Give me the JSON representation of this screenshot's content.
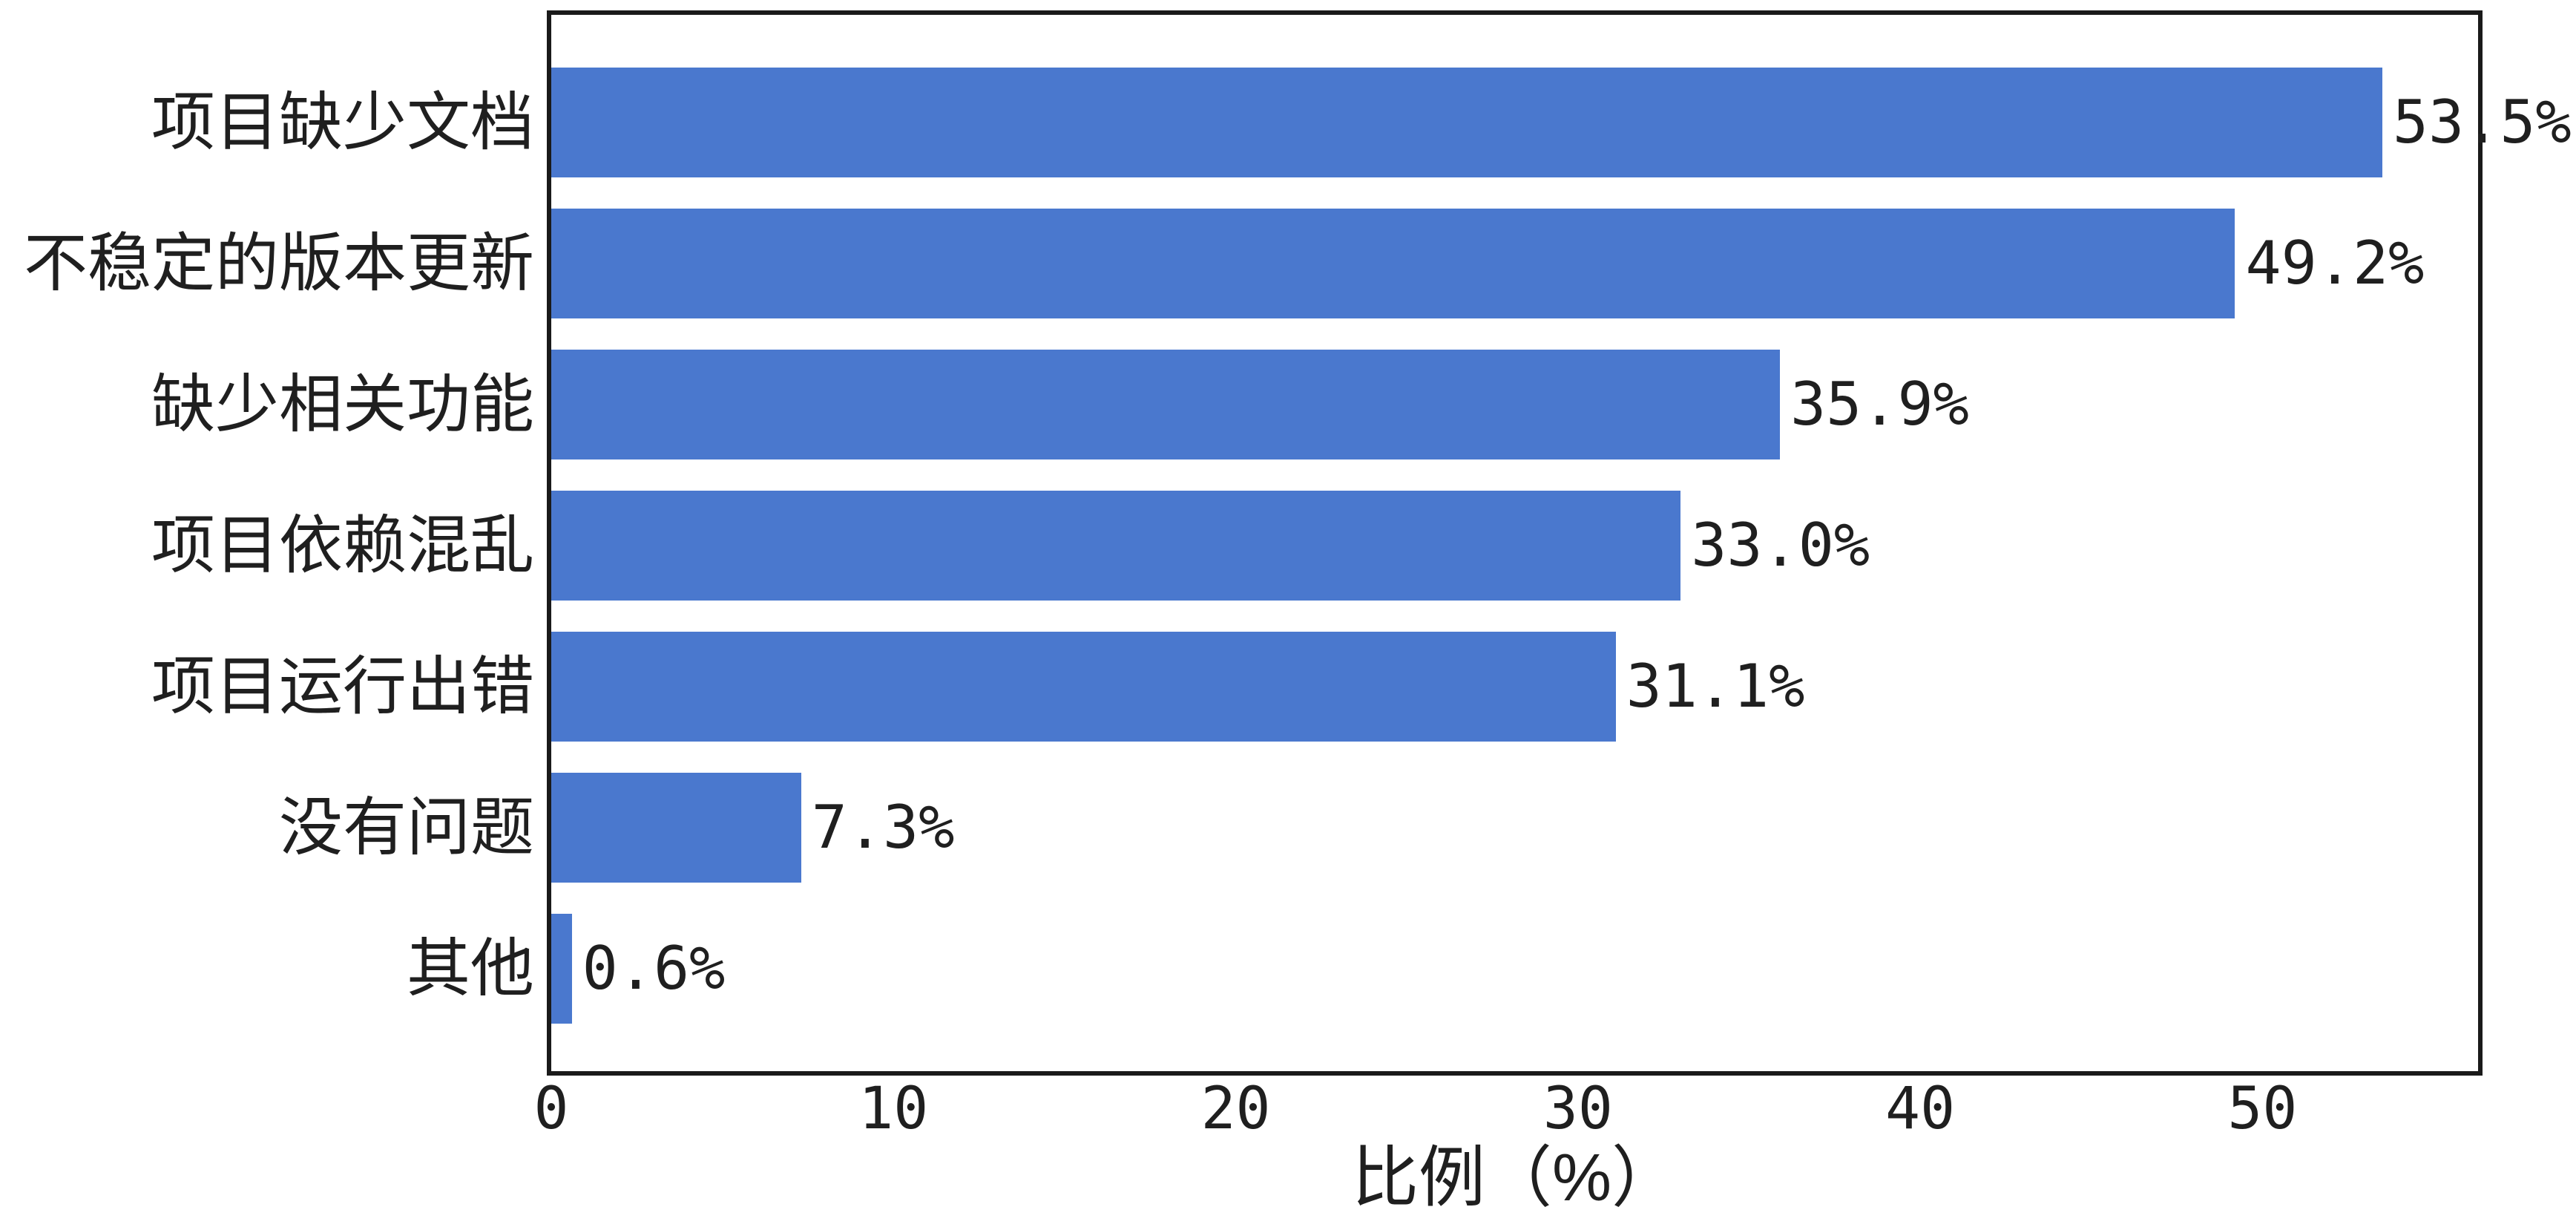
{
  "chart_data": {
    "type": "bar",
    "orientation": "horizontal",
    "title": "",
    "categories": [
      "项目缺少文档",
      "不稳定的版本更新",
      "缺少相关功能",
      "项目依赖混乱",
      "项目运行出错",
      "没有问题",
      "其他"
    ],
    "values": [
      53.5,
      49.2,
      35.9,
      33.0,
      31.1,
      7.3,
      0.6
    ],
    "value_labels": [
      "53.5%",
      "49.2%",
      "35.9%",
      "33.0%",
      "31.1%",
      "7.3%",
      "0.6%"
    ],
    "xlabel": "比例（%）",
    "ylabel": "",
    "xticks": [
      0,
      10,
      20,
      30,
      40,
      50
    ],
    "xtick_labels": [
      "0",
      "10",
      "20",
      "30",
      "40",
      "50"
    ],
    "xlim": [
      0,
      56.3
    ],
    "grid": false,
    "legend": null,
    "bar_color": "#4a78ce",
    "text_color": "#1f1f1f",
    "spine_color": "#1a1a1a",
    "background": "#ffffff"
  }
}
